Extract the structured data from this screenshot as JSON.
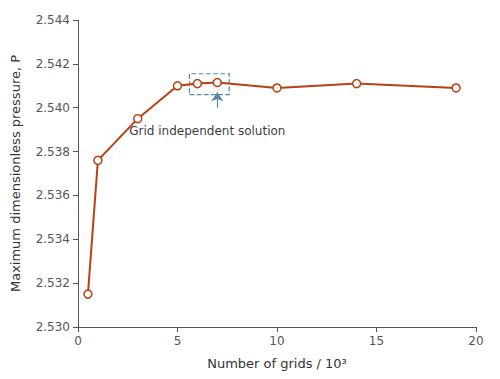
{
  "chart_data": {
    "type": "line",
    "x": [
      0.5,
      1.0,
      3.0,
      5.0,
      6.0,
      7.0,
      10.0,
      14.0,
      19.0
    ],
    "values": [
      2.5315,
      2.5376,
      2.5395,
      2.541,
      2.5411,
      2.54115,
      2.5409,
      2.5411,
      2.5409
    ],
    "color": "#B84012",
    "marker": "circle",
    "xlabel": "Number of grids / 10³",
    "ylabel": "Maximum dimensionless pressure, P",
    "xlim": [
      0,
      20
    ],
    "ylim": [
      2.53,
      2.544
    ],
    "xticks": [
      0,
      5,
      10,
      15,
      20
    ],
    "yticks": [
      {
        "value": 2.53,
        "label": "2.530"
      },
      2.532,
      2.534,
      2.536,
      2.538,
      {
        "value": 2.54,
        "label": "2.540"
      },
      2.542,
      2.544
    ],
    "grid": false,
    "annotation": {
      "text": "Grid independent solution",
      "x": 6.5,
      "y": 2.5393,
      "color": "#5588AA",
      "box": [
        [
          5.6,
          2.5406
        ],
        [
          7.6,
          2.54155
        ]
      ],
      "arrow": [
        [
          7.0,
          2.54
        ],
        [
          7.0,
          2.5407
        ]
      ]
    }
  }
}
